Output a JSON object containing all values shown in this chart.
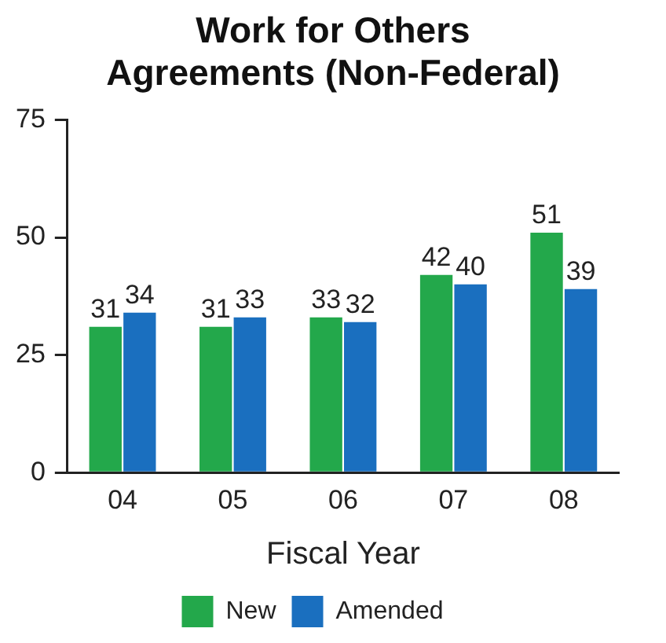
{
  "chart_data": {
    "type": "bar",
    "title": "Work for Others Agreements (Non-Federal)",
    "xlabel": "Fiscal Year",
    "categories": [
      "04",
      "05",
      "06",
      "07",
      "08"
    ],
    "series": [
      {
        "name": "New",
        "color": "#23a84b",
        "values": [
          31,
          31,
          33,
          42,
          51
        ]
      },
      {
        "name": "Amended",
        "color": "#1a6fbf",
        "values": [
          34,
          33,
          32,
          40,
          39
        ]
      }
    ],
    "ylim": [
      0,
      75
    ],
    "yticks": [
      0,
      25,
      50,
      75
    ],
    "grid": false,
    "legend": "bottom",
    "data_labels": true
  }
}
